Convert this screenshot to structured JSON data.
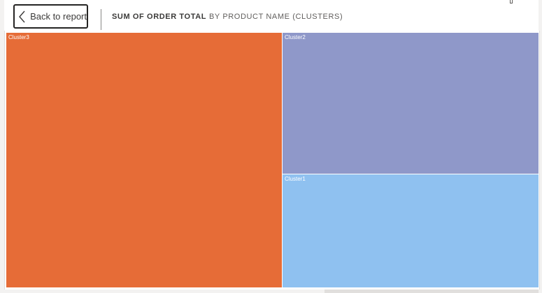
{
  "header": {
    "back_label": "Back to report",
    "title_measure": "SUM OF ORDER TOTAL",
    "title_dimension": "BY PRODUCT NAME (CLUSTERS)"
  },
  "treemap": {
    "tiles": [
      {
        "label": "Cluster3",
        "color": "#e66c37"
      },
      {
        "label": "Cluster2",
        "color": "#8f98c9"
      },
      {
        "label": "Cluster1",
        "color": "#8fc1f0"
      }
    ]
  },
  "colors": {
    "accent_border": "#252423",
    "background": "#ffffff"
  },
  "icons": {
    "back": "chevron-left-icon"
  }
}
